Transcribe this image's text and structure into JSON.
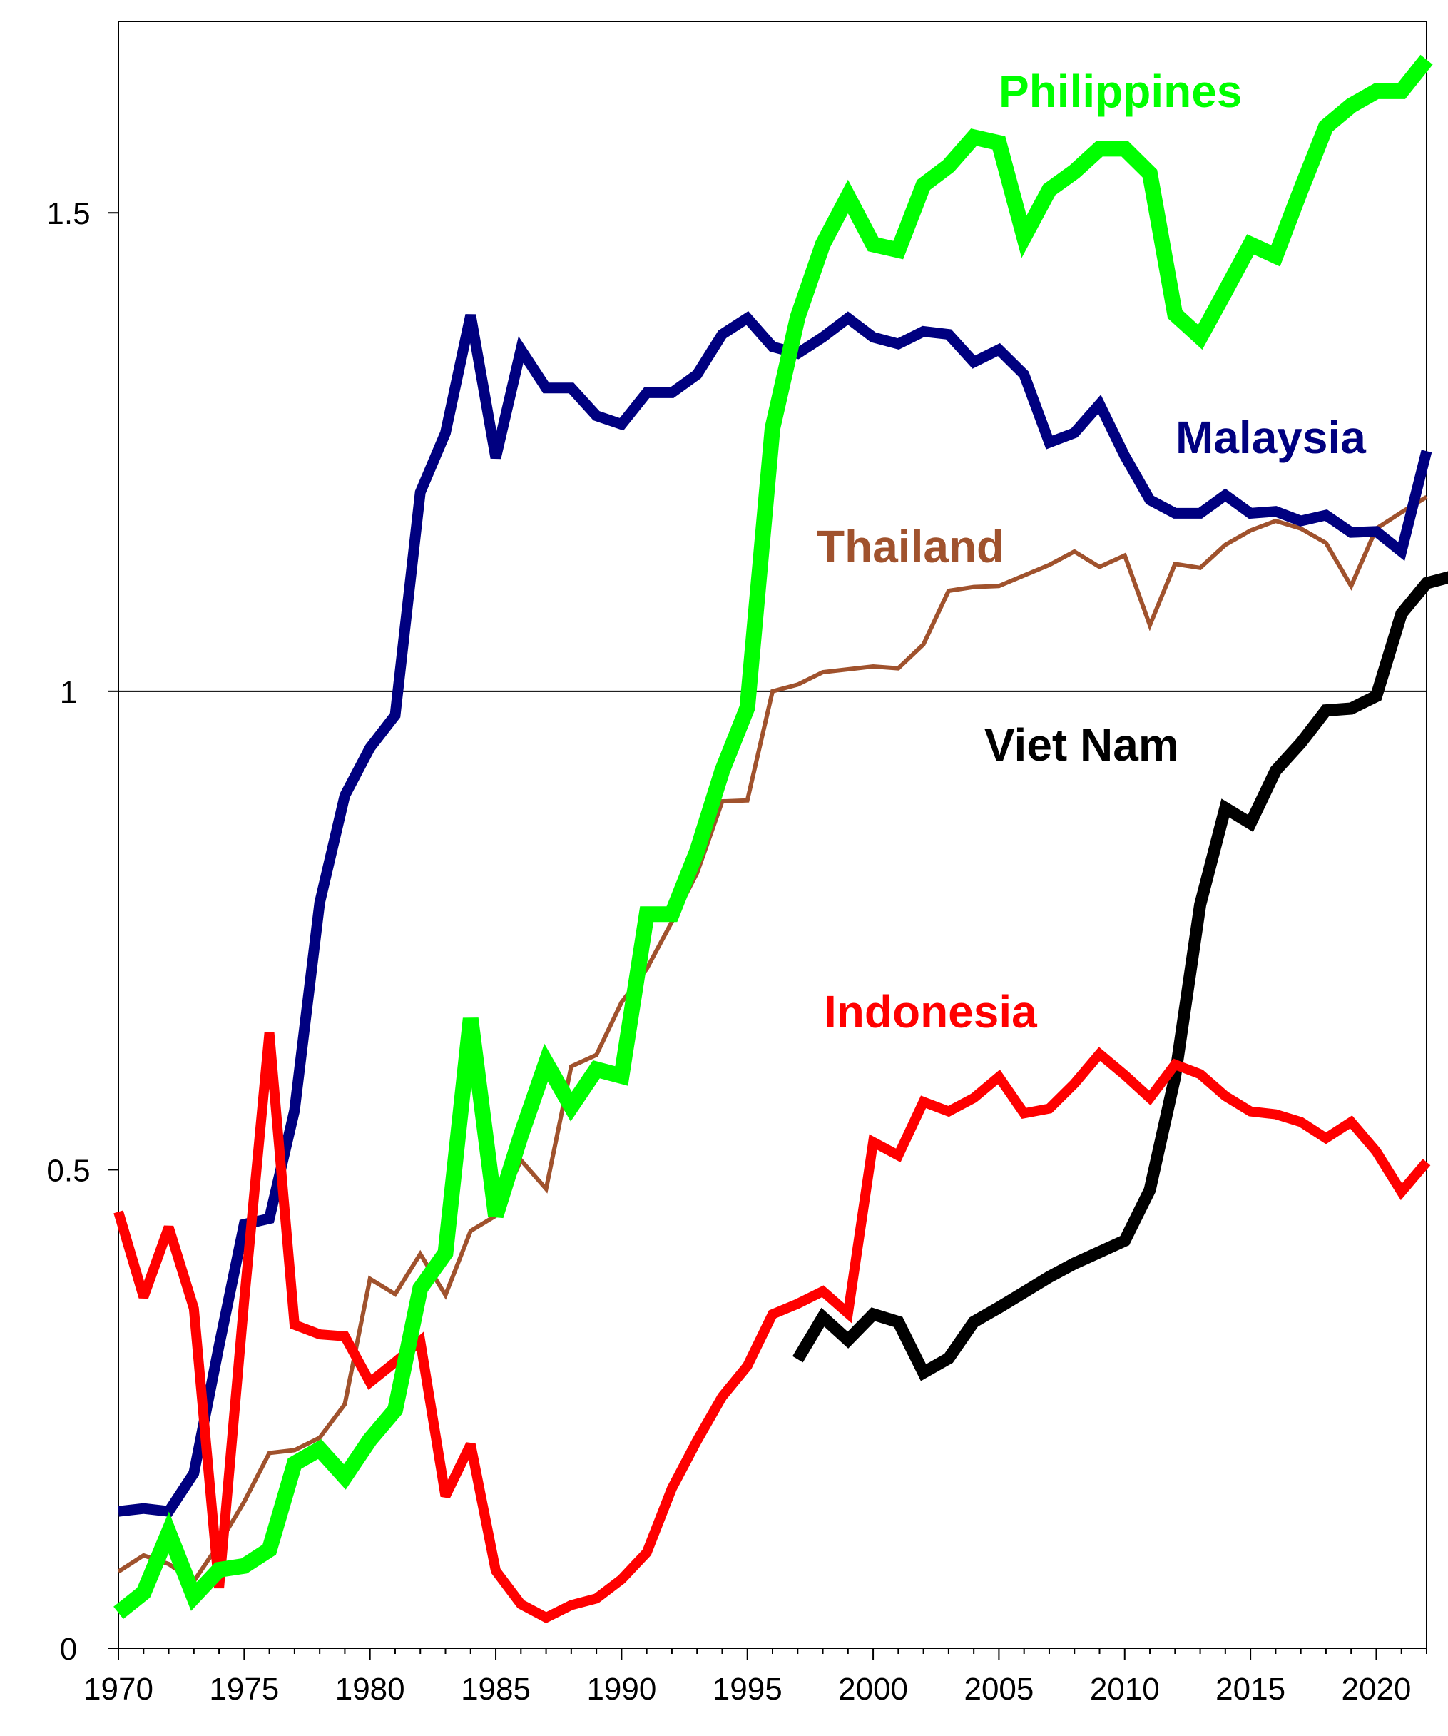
{
  "chart_data": {
    "type": "line",
    "title": "",
    "xlabel": "",
    "ylabel": "",
    "xlim": [
      1970,
      2022
    ],
    "ylim": [
      0,
      1.7
    ],
    "x_ticks": [
      1970,
      1975,
      1980,
      1985,
      1990,
      1995,
      2000,
      2005,
      2010,
      2015,
      2020
    ],
    "x_tick_labels": [
      "1970",
      "1975",
      "1980",
      "1985",
      "1990",
      "1995",
      "2000",
      "2005",
      "2010",
      "2015",
      "2020"
    ],
    "y_ticks": [
      0,
      0.5,
      1,
      1.5
    ],
    "y_tick_labels": [
      "0",
      "0.5",
      "1",
      "1.5"
    ],
    "reference_line": 1,
    "grid": false,
    "legend": "direct labels next to lines",
    "series": [
      {
        "name": "Philippines",
        "color": "#00ff00",
        "x_start": 1970,
        "values": [
          0.037,
          0.058,
          0.121,
          0.054,
          0.082,
          0.086,
          0.103,
          0.193,
          0.208,
          0.179,
          0.218,
          0.249,
          0.376,
          0.413,
          0.658,
          0.452,
          0.536,
          0.612,
          0.566,
          0.605,
          0.598,
          0.767,
          0.767,
          0.833,
          0.917,
          0.983,
          1.275,
          1.391,
          1.467,
          1.517,
          1.467,
          1.461,
          1.529,
          1.549,
          1.579,
          1.573,
          1.475,
          1.524,
          1.543,
          1.567,
          1.567,
          1.541,
          1.394,
          1.37,
          1.418,
          1.467,
          1.455,
          1.524,
          1.59,
          1.612,
          1.627,
          1.627,
          1.66
        ]
      },
      {
        "name": "Malaysia",
        "color": "#000080",
        "x_start": 1970,
        "values": [
          0.143,
          0.146,
          0.143,
          0.183,
          0.316,
          0.443,
          0.449,
          0.562,
          0.779,
          0.891,
          0.941,
          0.975,
          1.208,
          1.27,
          1.393,
          1.244,
          1.357,
          1.317,
          1.317,
          1.288,
          1.279,
          1.312,
          1.312,
          1.331,
          1.373,
          1.39,
          1.36,
          1.353,
          1.37,
          1.39,
          1.37,
          1.363,
          1.376,
          1.373,
          1.344,
          1.357,
          1.331,
          1.26,
          1.27,
          1.3,
          1.246,
          1.2,
          1.186,
          1.186,
          1.205,
          1.186,
          1.188,
          1.178,
          1.184,
          1.166,
          1.167,
          1.146,
          1.251
        ]
      },
      {
        "name": "Thailand",
        "color": "#a0522d",
        "x_start": 1970,
        "values": [
          0.08,
          0.097,
          0.088,
          0.07,
          0.109,
          0.153,
          0.204,
          0.207,
          0.22,
          0.255,
          0.386,
          0.37,
          0.412,
          0.369,
          0.436,
          0.452,
          0.51,
          0.48,
          0.608,
          0.62,
          0.675,
          0.71,
          0.759,
          0.81,
          0.885,
          0.886,
          1.0,
          1.007,
          1.02,
          1.023,
          1.026,
          1.024,
          1.049,
          1.105,
          1.109,
          1.11,
          1.121,
          1.132,
          1.146,
          1.13,
          1.142,
          1.069,
          1.133,
          1.129,
          1.153,
          1.168,
          1.178,
          1.17,
          1.155,
          1.11,
          1.17,
          1.187,
          1.203
        ]
      },
      {
        "name": "Indonesia",
        "color": "#ff0000",
        "x_start": 1970,
        "values": [
          0.456,
          0.367,
          0.44,
          0.355,
          0.063,
          0.363,
          0.643,
          0.338,
          0.328,
          0.326,
          0.278,
          0.299,
          0.321,
          0.159,
          0.213,
          0.081,
          0.046,
          0.032,
          0.045,
          0.052,
          0.072,
          0.1,
          0.167,
          0.217,
          0.263,
          0.295,
          0.349,
          0.36,
          0.373,
          0.35,
          0.529,
          0.515,
          0.571,
          0.561,
          0.575,
          0.597,
          0.559,
          0.564,
          0.59,
          0.621,
          0.599,
          0.575,
          0.61,
          0.6,
          0.577,
          0.561,
          0.558,
          0.55,
          0.533,
          0.55,
          0.519,
          0.477,
          0.508
        ]
      },
      {
        "name": "Viet Nam",
        "color": "#000000",
        "x_start": 1997,
        "values": [
          0.302,
          0.346,
          0.322,
          0.349,
          0.341,
          0.288,
          0.303,
          0.341,
          0.356,
          0.372,
          0.388,
          0.402,
          0.414,
          0.426,
          0.479,
          0.597,
          0.777,
          0.878,
          0.862,
          0.917,
          0.946,
          0.98,
          0.982,
          0.995,
          1.081,
          1.113,
          1.12
        ]
      }
    ]
  },
  "labels": {
    "philippines": "Philippines",
    "malaysia": "Malaysia",
    "thailand": "Thailand",
    "viet_nam": "Viet Nam",
    "indonesia": "Indonesia"
  }
}
